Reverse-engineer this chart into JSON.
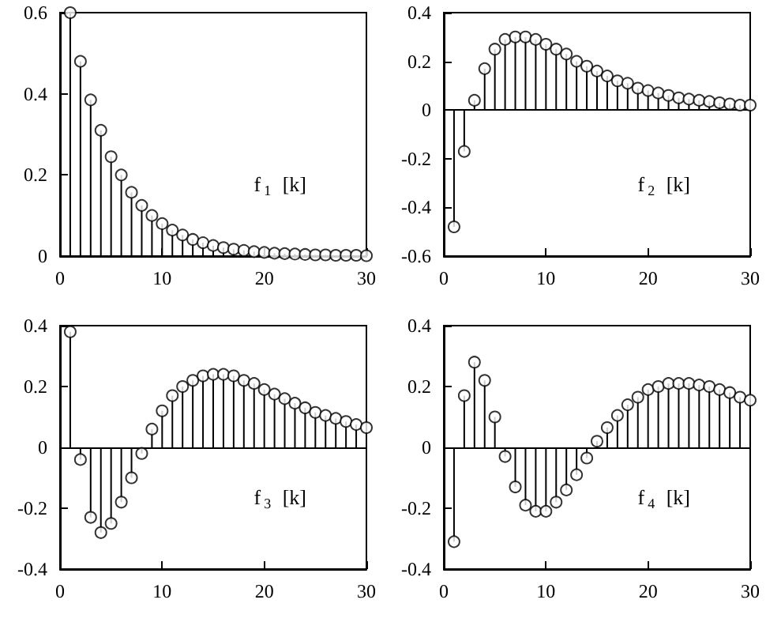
{
  "chart_data": [
    {
      "type": "lollipop",
      "x": [
        1,
        2,
        3,
        4,
        5,
        6,
        7,
        8,
        9,
        10,
        11,
        12,
        13,
        14,
        15,
        16,
        17,
        18,
        19,
        20,
        21,
        22,
        23,
        24,
        25,
        26,
        27,
        28,
        29,
        30
      ],
      "values": [
        0.6,
        0.48,
        0.385,
        0.31,
        0.245,
        0.2,
        0.157,
        0.125,
        0.1,
        0.08,
        0.064,
        0.052,
        0.041,
        0.033,
        0.026,
        0.021,
        0.017,
        0.014,
        0.011,
        0.009,
        0.007,
        0.006,
        0.005,
        0.004,
        0.003,
        0.003,
        0.002,
        0.002,
        0.002,
        0.001
      ],
      "color": "#000000",
      "marker": "circle",
      "xlim": [
        0,
        30
      ],
      "xticks": [
        0,
        10,
        20,
        30
      ],
      "ylim": [
        0,
        0.6
      ],
      "yticks": [
        0,
        0.2,
        0.4,
        0.6
      ],
      "annotations": [
        "f$_{1}$ [k]"
      ]
    },
    {
      "type": "lollipop",
      "x": [
        1,
        2,
        3,
        4,
        5,
        6,
        7,
        8,
        9,
        10,
        11,
        12,
        13,
        14,
        15,
        16,
        17,
        18,
        19,
        20,
        21,
        22,
        23,
        24,
        25,
        26,
        27,
        28,
        29,
        30
      ],
      "values": [
        -0.48,
        -0.17,
        0.04,
        0.17,
        0.25,
        0.29,
        0.3,
        0.3,
        0.29,
        0.27,
        0.25,
        0.23,
        0.2,
        0.18,
        0.16,
        0.14,
        0.12,
        0.11,
        0.09,
        0.08,
        0.07,
        0.06,
        0.05,
        0.045,
        0.04,
        0.035,
        0.03,
        0.025,
        0.02,
        0.02
      ],
      "color": "#000000",
      "marker": "circle",
      "xlim": [
        0,
        30
      ],
      "xticks": [
        0,
        10,
        20,
        30
      ],
      "ylim": [
        -0.6,
        0.4
      ],
      "yticks": [
        -0.6,
        -0.4,
        -0.2,
        0,
        0.2,
        0.4
      ],
      "annotations": [
        "f$_{2}$ [k]"
      ],
      "ref_lines": [
        {
          "axis": "y",
          "value": 0,
          "color": "#000000"
        }
      ]
    },
    {
      "type": "lollipop",
      "x": [
        1,
        2,
        3,
        4,
        5,
        6,
        7,
        8,
        9,
        10,
        11,
        12,
        13,
        14,
        15,
        16,
        17,
        18,
        19,
        20,
        21,
        22,
        23,
        24,
        25,
        26,
        27,
        28,
        29,
        30
      ],
      "values": [
        0.38,
        -0.04,
        -0.23,
        -0.28,
        -0.25,
        -0.18,
        -0.1,
        -0.02,
        0.06,
        0.12,
        0.17,
        0.2,
        0.22,
        0.235,
        0.24,
        0.24,
        0.235,
        0.22,
        0.21,
        0.19,
        0.175,
        0.16,
        0.145,
        0.13,
        0.115,
        0.105,
        0.095,
        0.085,
        0.075,
        0.065
      ],
      "color": "#000000",
      "marker": "circle",
      "xlim": [
        0,
        30
      ],
      "xticks": [
        0,
        10,
        20,
        30
      ],
      "ylim": [
        -0.4,
        0.4
      ],
      "yticks": [
        -0.4,
        -0.2,
        0,
        0.2,
        0.4
      ],
      "annotations": [
        "f$_{3}$ [k]"
      ],
      "ref_lines": [
        {
          "axis": "y",
          "value": 0,
          "color": "#000000"
        }
      ]
    },
    {
      "type": "lollipop",
      "x": [
        1,
        2,
        3,
        4,
        5,
        6,
        7,
        8,
        9,
        10,
        11,
        12,
        13,
        14,
        15,
        16,
        17,
        18,
        19,
        20,
        21,
        22,
        23,
        24,
        25,
        26,
        27,
        28,
        29,
        30
      ],
      "values": [
        -0.31,
        0.17,
        0.28,
        0.22,
        0.1,
        -0.03,
        -0.13,
        -0.19,
        -0.21,
        -0.21,
        -0.18,
        -0.14,
        -0.09,
        -0.035,
        0.02,
        0.065,
        0.105,
        0.14,
        0.165,
        0.19,
        0.2,
        0.21,
        0.21,
        0.21,
        0.205,
        0.2,
        0.19,
        0.18,
        0.165,
        0.155
      ],
      "color": "#000000",
      "marker": "circle",
      "xlim": [
        0,
        30
      ],
      "xticks": [
        0,
        10,
        20,
        30
      ],
      "ylim": [
        -0.4,
        0.4
      ],
      "yticks": [
        -0.4,
        -0.2,
        0,
        0.2,
        0.4
      ],
      "annotations": [
        "f$_{4}$ [k]"
      ],
      "ref_lines": [
        {
          "axis": "y",
          "value": 0,
          "color": "#000000"
        }
      ]
    }
  ]
}
